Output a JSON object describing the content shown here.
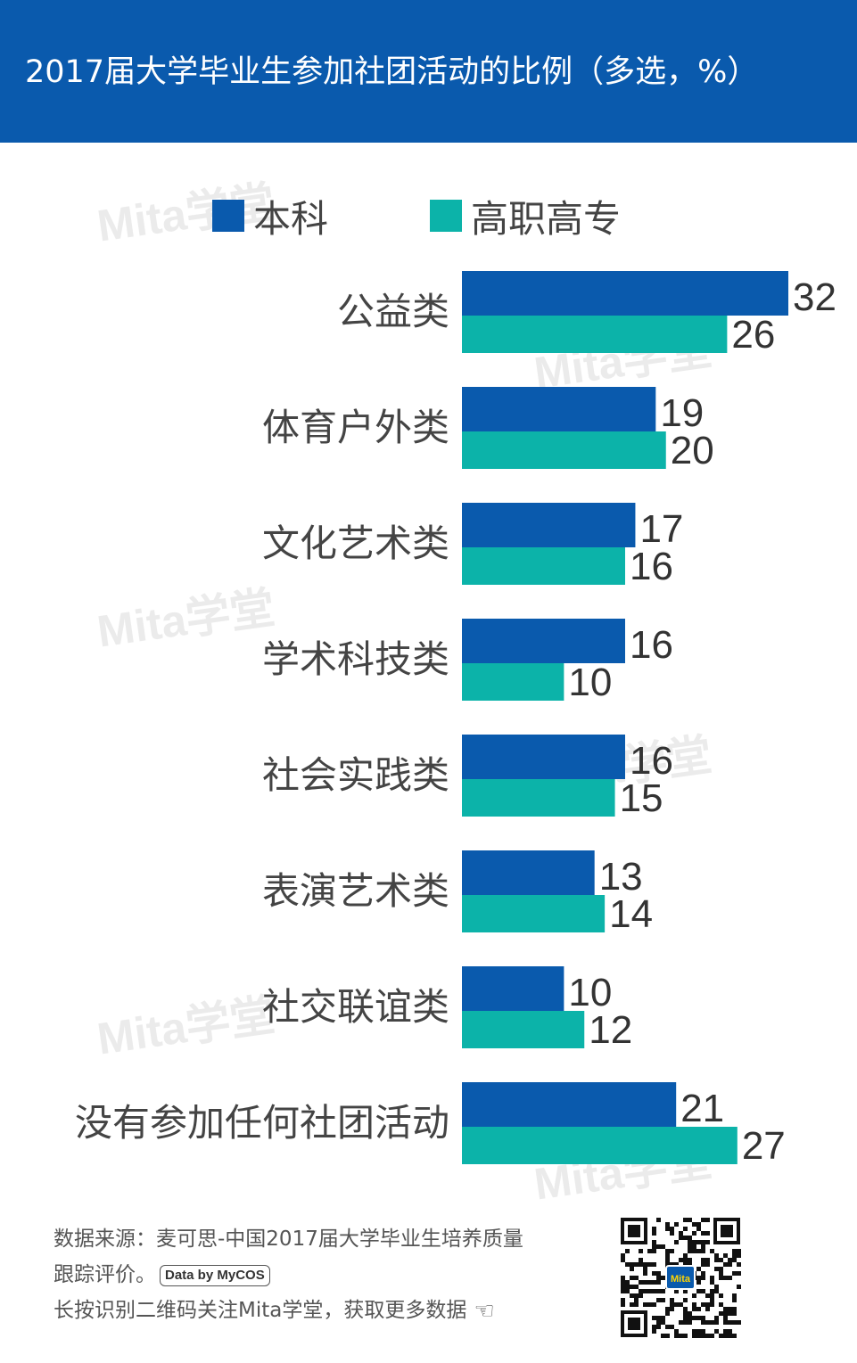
{
  "header": {
    "title": "2017届大学毕业生参加社团活动的比例（多选，%）"
  },
  "watermark": {
    "text": "Mita学堂"
  },
  "colors": {
    "header_bg": "#0a5aad",
    "series_1": "#0a5aad",
    "series_2": "#0cb3a9"
  },
  "chart_data": {
    "type": "bar",
    "orientation": "horizontal",
    "title": "2017届大学毕业生参加社团活动的比例（多选，%）",
    "categories": [
      "公益类",
      "体育户外类",
      "文化艺术类",
      "学术科技类",
      "社会实践类",
      "表演艺术类",
      "社交联谊类",
      "没有参加任何社团活动"
    ],
    "series": [
      {
        "name": "本科",
        "color": "#0a5aad",
        "values": [
          32,
          19,
          17,
          16,
          16,
          13,
          10,
          21
        ]
      },
      {
        "name": "高职高专",
        "color": "#0cb3a9",
        "values": [
          26,
          20,
          16,
          10,
          15,
          14,
          12,
          27
        ]
      }
    ],
    "xlim": [
      0,
      32
    ],
    "legend_position": "top",
    "grid": false,
    "data_labels": true
  },
  "footer": {
    "source_line1": "数据来源：麦可思-中国2017届大学毕业生培养质量",
    "source_line2": "跟踪评价。",
    "badge": "Data by MyCOS",
    "follow": "长按识别二维码关注Mita学堂，获取更多数据",
    "qr_center_text": "Mita"
  }
}
